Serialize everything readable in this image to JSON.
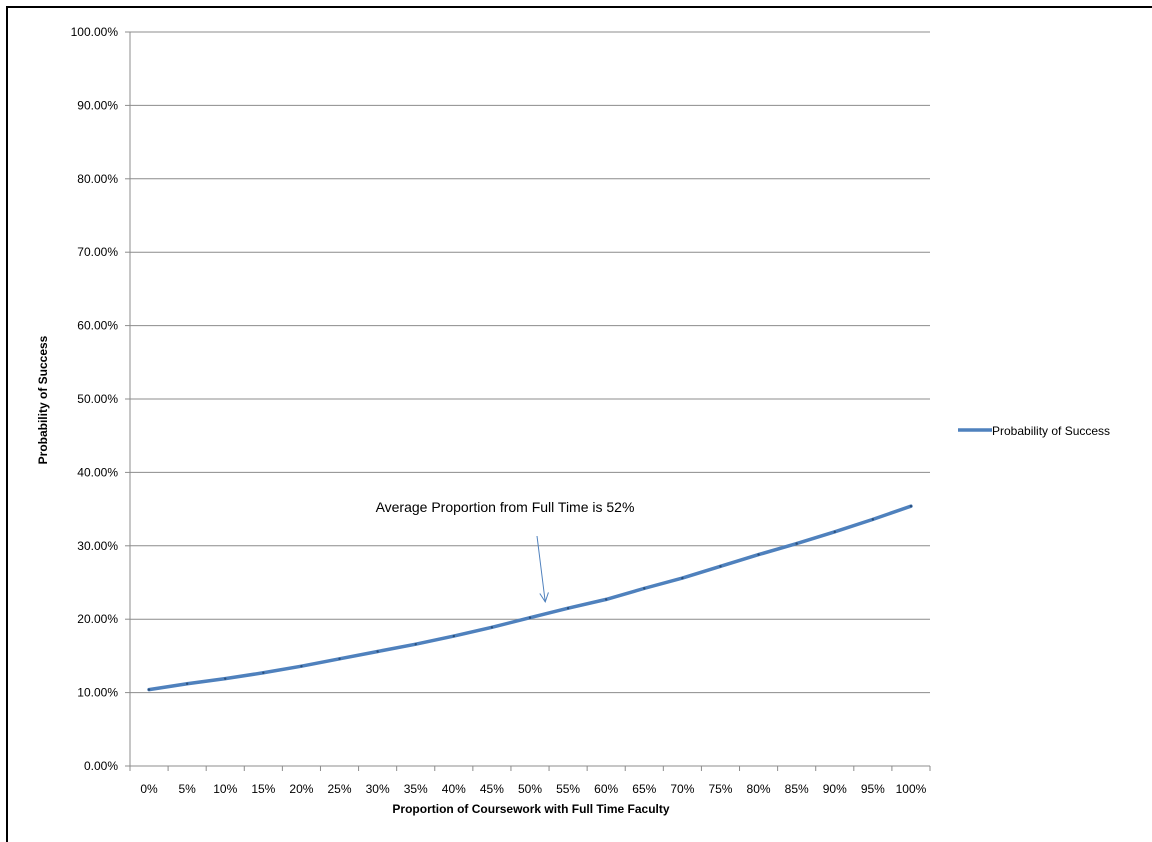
{
  "chart_data": {
    "type": "line",
    "title": "",
    "xlabel": "Proportion of Coursework  with Full Time Faculty",
    "ylabel": "Probability of Success",
    "categories": [
      "0%",
      "5%",
      "10%",
      "15%",
      "20%",
      "25%",
      "30%",
      "35%",
      "40%",
      "45%",
      "50%",
      "55%",
      "60%",
      "65%",
      "70%",
      "75%",
      "80%",
      "85%",
      "90%",
      "95%",
      "100%"
    ],
    "series": [
      {
        "name": "Probability of Success",
        "color": "#4F81BD",
        "values": [
          0.104,
          0.112,
          0.119,
          0.127,
          0.136,
          0.146,
          0.156,
          0.166,
          0.177,
          0.189,
          0.202,
          0.215,
          0.227,
          0.242,
          0.256,
          0.272,
          0.288,
          0.303,
          0.319,
          0.336,
          0.354
        ]
      }
    ],
    "ylim": [
      0,
      1
    ],
    "yticks": [
      "0.00%",
      "10.00%",
      "20.00%",
      "30.00%",
      "40.00%",
      "50.00%",
      "60.00%",
      "70.00%",
      "80.00%",
      "90.00%",
      "100.00%"
    ],
    "grid": true,
    "legend": "right",
    "annotation": {
      "text": "Average Proportion from Full Time is 52%",
      "x_value": 0.52
    }
  }
}
